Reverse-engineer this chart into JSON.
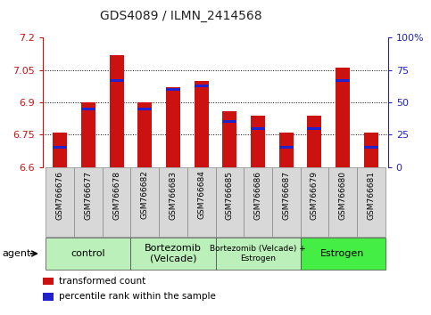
{
  "title": "GDS4089 / ILMN_2414568",
  "samples": [
    "GSM766676",
    "GSM766677",
    "GSM766678",
    "GSM766682",
    "GSM766683",
    "GSM766684",
    "GSM766685",
    "GSM766686",
    "GSM766687",
    "GSM766679",
    "GSM766680",
    "GSM766681"
  ],
  "red_values": [
    6.76,
    6.9,
    7.12,
    6.9,
    6.97,
    7.0,
    6.86,
    6.84,
    6.76,
    6.84,
    7.06,
    6.76
  ],
  "percentile_values": [
    15,
    45,
    67,
    45,
    60,
    63,
    35,
    30,
    15,
    30,
    67,
    15
  ],
  "y_min": 6.6,
  "y_max": 7.2,
  "y_ticks": [
    6.6,
    6.75,
    6.9,
    7.05,
    7.2
  ],
  "right_y_ticks": [
    0,
    25,
    50,
    75,
    100
  ],
  "group_borders": [
    {
      "start": 0,
      "end": 3,
      "label": "control",
      "color": "#bbf0bb"
    },
    {
      "start": 3,
      "end": 6,
      "label": "Bortezomib\n(Velcade)",
      "color": "#bbf0bb"
    },
    {
      "start": 6,
      "end": 9,
      "label": "Bortezomib (Velcade) +\nEstrogen",
      "color": "#bbf0bb"
    },
    {
      "start": 9,
      "end": 12,
      "label": "Estrogen",
      "color": "#44ee44"
    }
  ],
  "bar_color_red": "#cc1111",
  "bar_color_blue": "#2222cc",
  "bar_width": 0.5,
  "legend_red": "transformed count",
  "legend_blue": "percentile rank within the sample",
  "title_color": "#222222",
  "left_axis_color": "#cc1111",
  "right_axis_color": "#2222bb"
}
